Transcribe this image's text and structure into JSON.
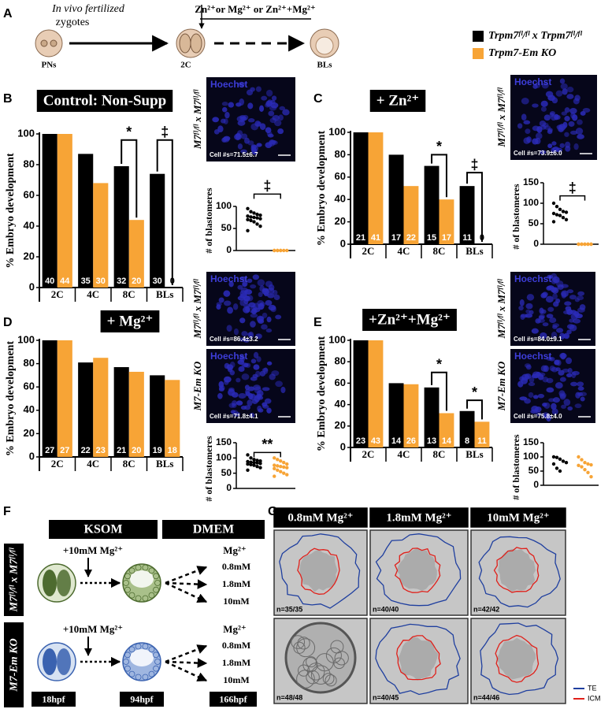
{
  "panel_labels": [
    "A",
    "B",
    "C",
    "D",
    "E",
    "F",
    "G"
  ],
  "scheme": {
    "start": [
      "In vivo fertilized",
      "zygotes"
    ],
    "stages": [
      "PNs",
      "2C",
      "BLs"
    ],
    "supplement": "Zn²⁺or Mg²⁺ or Zn²⁺+Mg²⁺"
  },
  "legend": [
    {
      "name": "Trpm7ᶠˡ/ᶠˡ x Trpm7ᶠˡ/ᶠˡ",
      "color": "#000000"
    },
    {
      "name": "Trpm7-Em KO",
      "color": "#f7a436"
    }
  ],
  "micrographs": [
    {
      "stain": "Hoechst",
      "count": "Cell #s=71.5±6.7",
      "genotype": "M7ᶠˡ/ᶠˡ x M7ᶠˡ/ᶠˡ"
    },
    {
      "stain": "Hoechst",
      "count": "Cell #s=73.9±6.0",
      "genotype": "M7ᶠˡ/ᶠˡ x M7ᶠˡ/ᶠˡ"
    },
    {
      "stain": "Hoechst",
      "count": "Cell #s=86.4±3.2",
      "genotype": "M7ᶠˡ/ᶠˡ x M7ᶠˡ/ᶠˡ"
    },
    {
      "stain": "Hoechst",
      "count": "Cell #s=71.8±4.1",
      "genotype": "M7-Em KO"
    },
    {
      "stain": "Hoechst",
      "count": "Cell #s=84.0±9.1",
      "genotype": "M7ᶠˡ/ᶠˡ x M7ᶠˡ/ᶠˡ"
    },
    {
      "stain": "Hoechst",
      "count": "Cell #s=75.8±4.0",
      "genotype": "M7-Em KO"
    }
  ],
  "chart_data": [
    {
      "type": "bar",
      "title": "Control: Non-Supp",
      "y_label": "% Embryo development",
      "categories": [
        "2C",
        "4C",
        "8C",
        "BLs"
      ],
      "series": [
        {
          "color": "#000000",
          "values": [
            100,
            87,
            79,
            74
          ],
          "counts": [
            40,
            35,
            32,
            30
          ]
        },
        {
          "color": "#f7a436",
          "values": [
            100,
            68,
            44,
            0
          ],
          "counts": [
            44,
            30,
            20,
            0
          ]
        }
      ],
      "ylim": [
        0,
        100
      ],
      "yticks": [
        0,
        20,
        40,
        60,
        80,
        100
      ],
      "annotations": [
        "*",
        "‡"
      ]
    },
    {
      "type": "strip",
      "y_label": "# of blastomeres",
      "series": [
        {
          "color": "#000000",
          "values": [
            95,
            88,
            85,
            82,
            80,
            78,
            76,
            75,
            74,
            72,
            70,
            68,
            65,
            60,
            55,
            45
          ]
        },
        {
          "color": "#f7a436",
          "values": [
            0,
            0,
            0,
            0,
            0,
            0,
            0,
            0
          ]
        }
      ],
      "ylim": [
        0,
        150
      ],
      "yticks": [
        0,
        50,
        100
      ],
      "annotations": [
        "‡"
      ]
    },
    {
      "type": "bar",
      "title": "+ Zn²⁺",
      "y_label": "% Embryo development",
      "categories": [
        "2C",
        "4C",
        "8C",
        "BLs"
      ],
      "series": [
        {
          "color": "#000000",
          "values": [
            100,
            80,
            70,
            52
          ],
          "counts": [
            21,
            17,
            15,
            11
          ]
        },
        {
          "color": "#f7a436",
          "values": [
            100,
            52,
            40,
            0
          ],
          "counts": [
            41,
            22,
            17,
            0
          ]
        }
      ],
      "ylim": [
        0,
        100
      ],
      "yticks": [
        0,
        20,
        40,
        60,
        80,
        100
      ],
      "annotations": [
        "*",
        "‡"
      ]
    },
    {
      "type": "strip",
      "y_label": "# of blastomeres",
      "series": [
        {
          "color": "#000000",
          "values": [
            100,
            92,
            85,
            80,
            78,
            75,
            72,
            70,
            65,
            60,
            55
          ]
        },
        {
          "color": "#f7a436",
          "values": [
            0,
            0,
            0,
            0,
            0,
            0,
            0,
            0,
            0,
            0
          ]
        }
      ],
      "ylim": [
        0,
        150
      ],
      "yticks": [
        0,
        50,
        100,
        150
      ],
      "annotations": [
        "‡"
      ]
    },
    {
      "type": "bar",
      "title": "+ Mg²⁺",
      "y_label": "% Embryo development",
      "categories": [
        "2C",
        "4C",
        "8C",
        "BLs"
      ],
      "series": [
        {
          "color": "#000000",
          "values": [
            100,
            81,
            77,
            70
          ],
          "counts": [
            27,
            22,
            21,
            19
          ]
        },
        {
          "color": "#f7a436",
          "values": [
            100,
            85,
            73,
            66
          ],
          "counts": [
            27,
            23,
            20,
            18
          ]
        }
      ],
      "ylim": [
        0,
        100
      ],
      "yticks": [
        0,
        20,
        40,
        60,
        80,
        100
      ],
      "annotations": []
    },
    {
      "type": "strip",
      "y_label": "# of blastomeres",
      "series": [
        {
          "color": "#000000",
          "values": [
            110,
            100,
            95,
            92,
            90,
            88,
            86,
            85,
            84,
            82,
            80,
            78,
            76,
            72,
            68,
            60
          ]
        },
        {
          "color": "#f7a436",
          "values": [
            100,
            95,
            90,
            85,
            80,
            76,
            74,
            72,
            70,
            68,
            65,
            60,
            55,
            50,
            45,
            40
          ]
        }
      ],
      "ylim": [
        0,
        150
      ],
      "yticks": [
        0,
        50,
        100,
        150
      ],
      "annotations": [
        "**"
      ]
    },
    {
      "type": "bar",
      "title": "+Zn²⁺+Mg²⁺",
      "y_label": "% Embryo development",
      "categories": [
        "2C",
        "4C",
        "8C",
        "BLs"
      ],
      "series": [
        {
          "color": "#000000",
          "values": [
            100,
            60,
            56,
            34
          ],
          "counts": [
            23,
            14,
            13,
            8
          ]
        },
        {
          "color": "#f7a436",
          "values": [
            100,
            59,
            32,
            24
          ],
          "counts": [
            43,
            26,
            14,
            11
          ]
        }
      ],
      "ylim": [
        0,
        100
      ],
      "yticks": [
        0,
        20,
        40,
        60,
        80,
        100
      ],
      "annotations": [
        "*",
        "*"
      ]
    },
    {
      "type": "strip",
      "y_label": "# of blastomeres",
      "series": [
        {
          "color": "#000000",
          "values": [
            100,
            98,
            92,
            85,
            80,
            75,
            60,
            50
          ]
        },
        {
          "color": "#f7a436",
          "values": [
            100,
            90,
            80,
            75,
            72,
            70,
            65,
            55,
            45,
            30
          ]
        }
      ],
      "ylim": [
        0,
        150
      ],
      "yticks": [
        0,
        50,
        100,
        150
      ],
      "annotations": []
    }
  ],
  "protocol": {
    "media": [
      "KSOM",
      "DMEM"
    ],
    "rows": [
      {
        "genotype": "M7ᶠˡ/ᶠˡ x M7ᶠˡ/ᶠˡ",
        "treatment": "+10mM Mg²⁺",
        "ion": "Mg²⁺",
        "concentrations": [
          "0.8mM",
          "1.8mM",
          "10mM"
        ]
      },
      {
        "genotype": "M7-Em KO",
        "treatment": "+10mM Mg²⁺",
        "ion": "Mg²⁺",
        "concentrations": [
          "0.8mM",
          "1.8mM",
          "10mM"
        ]
      }
    ],
    "timepoints": [
      "18hpf",
      "94hpf",
      "166hpf"
    ]
  },
  "culture": {
    "columns": [
      "0.8mM Mg²⁺",
      "1.8mM Mg²⁺",
      "10mM Mg²⁺"
    ],
    "counts": [
      [
        "n=35/35",
        "n=40/40",
        "n=42/42"
      ],
      [
        "n=48/48",
        "n=40/45",
        "n=44/46"
      ]
    ],
    "legend": [
      {
        "name": "TE",
        "color": "#1f3f9f"
      },
      {
        "name": "ICM",
        "color": "#e0201a"
      }
    ]
  }
}
